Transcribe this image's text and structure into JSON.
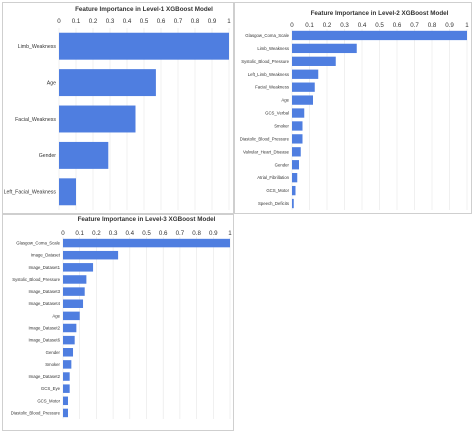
{
  "colors": {
    "bar": "#4f7ee0",
    "grid": "#e6e6e6",
    "text": "#333333",
    "frame": "#cfcfcf"
  },
  "chart_data": [
    {
      "type": "bar",
      "orientation": "horizontal",
      "title": "Feature Importance in Level-1 XGBoost Model",
      "xlim": [
        0,
        1
      ],
      "xticks": [
        "0",
        "0.1",
        "0.2",
        "0.3",
        "0.4",
        "0.5",
        "0.6",
        "0.7",
        "0.8",
        "0.9",
        "1"
      ],
      "grid": true,
      "categories": [
        "Limb_Weakness",
        "Age",
        "Facial_Weakness",
        "Gender",
        "Left_Facial_Weakness"
      ],
      "values": [
        1.0,
        0.57,
        0.45,
        0.29,
        0.1
      ]
    },
    {
      "type": "bar",
      "orientation": "horizontal",
      "title": "Feature Importance in Level-2 XGBoost Model",
      "xlim": [
        0,
        1
      ],
      "xticks": [
        "0",
        "0.1",
        "0.2",
        "0.3",
        "0.4",
        "0.5",
        "0.6",
        "0.7",
        "0.8",
        "0.9",
        "1"
      ],
      "grid": true,
      "categories": [
        "Glasgow_Coma_Scale",
        "Limb_Weakness",
        "Systolic_Blood_Pressure",
        "Left_Limb_Weakness",
        "Facial_Weakness",
        "Age",
        "GCS_Verbal",
        "Smoker",
        "Diastolic_Blood_Pressure",
        "Valvular_Heart_Disease",
        "Gender",
        "Atrial_Fibrillation",
        "GCS_Motor",
        "Speech_Deficits"
      ],
      "values": [
        1.0,
        0.37,
        0.25,
        0.15,
        0.13,
        0.12,
        0.07,
        0.06,
        0.06,
        0.05,
        0.04,
        0.03,
        0.02,
        0.01
      ]
    },
    {
      "type": "bar",
      "orientation": "horizontal",
      "title": "Feature Importance in Level-3 XGBoost Model",
      "xlim": [
        0,
        1
      ],
      "xticks": [
        "0",
        "0.1",
        "0.2",
        "0.3",
        "0.4",
        "0.5",
        "0.6",
        "0.7",
        "0.8",
        "0.9",
        "1"
      ],
      "grid": true,
      "categories": [
        "Glasgow_Coma_Scale",
        "Image_Dataset",
        "Image_Dataset1",
        "Systolic_Blood_Pressure",
        "Image_Dataset3",
        "Image_Dataset4",
        "Age",
        "Image_Dataset2",
        "Image_Dataset6",
        "Gender",
        "Smoker",
        "Image_Dataset2",
        "GCS_Eye",
        "GCS_Motor",
        "Diastolic_Blood_Pressure"
      ],
      "values": [
        1.0,
        0.33,
        0.18,
        0.14,
        0.13,
        0.12,
        0.1,
        0.08,
        0.07,
        0.06,
        0.05,
        0.04,
        0.04,
        0.03,
        0.03
      ]
    }
  ]
}
